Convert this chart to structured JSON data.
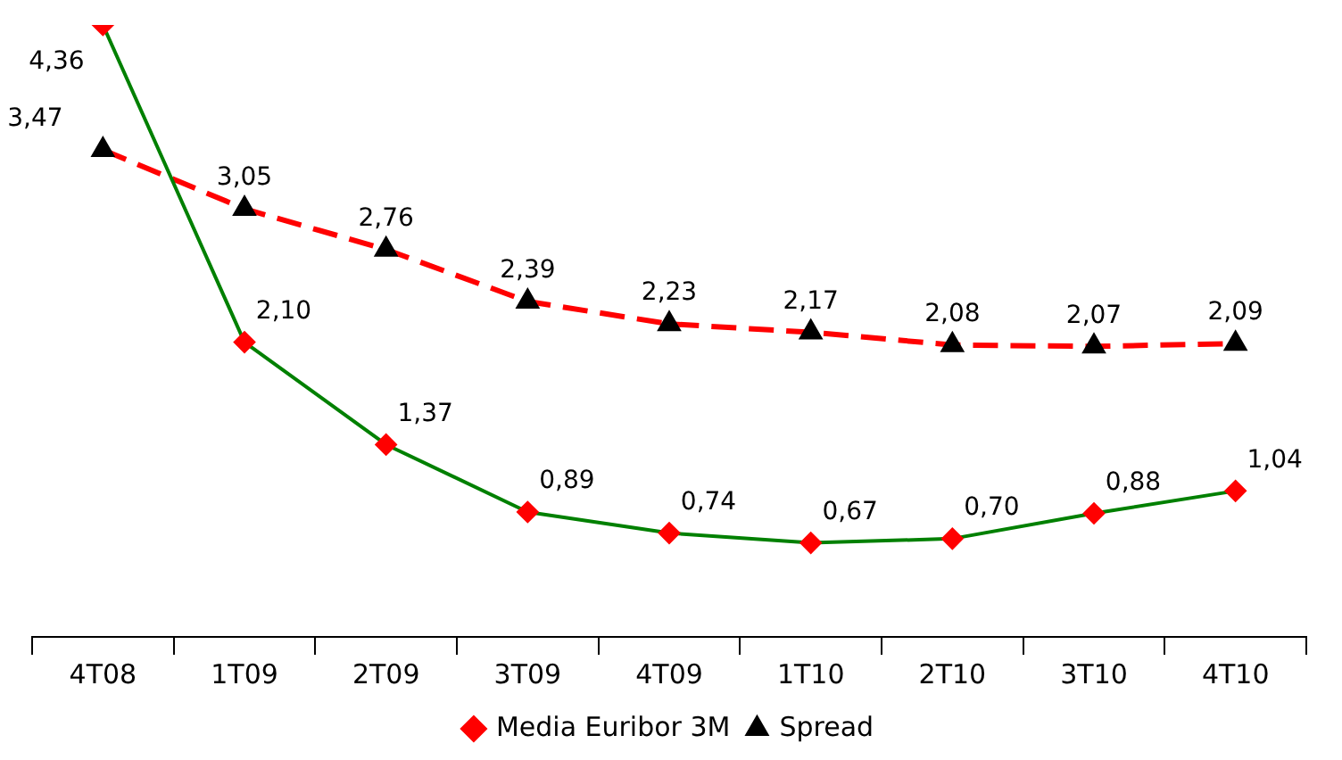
{
  "chart_data": {
    "type": "line",
    "categories": [
      "4T08",
      "1T09",
      "2T09",
      "3T09",
      "4T09",
      "1T10",
      "2T10",
      "3T10",
      "4T10"
    ],
    "series": [
      {
        "name": "Media Euribor 3M",
        "color": "#008000",
        "colors": [
          "#ff0000",
          "#ff0000",
          "#ff0000",
          "#ff0000",
          "#ff0000",
          "#ff0000",
          "#ff0000",
          "#ff0000",
          "#ff0000"
        ],
        "marker": "diamond",
        "line_style": "solid",
        "values": [
          4.36,
          2.1,
          1.37,
          0.89,
          0.74,
          0.67,
          0.7,
          0.88,
          1.04
        ],
        "value_labels": [
          "4,36",
          "2,10",
          "1,37",
          "0,89",
          "0,74",
          "0,67",
          "0,70",
          "0,88",
          "1,04"
        ]
      },
      {
        "name": "Spread",
        "color": "#ff0000",
        "colors": [
          "#000000",
          "#000000",
          "#000000",
          "#000000",
          "#000000",
          "#000000",
          "#000000",
          "#000000",
          "#000000"
        ],
        "marker": "triangle",
        "line_style": "dashed",
        "values": [
          3.47,
          3.05,
          2.76,
          2.39,
          2.23,
          2.17,
          2.08,
          2.07,
          2.09
        ],
        "value_labels": [
          "3,47",
          "3,05",
          "2,76",
          "2,39",
          "2,23",
          "2,17",
          "2,08",
          "2,07",
          "2,09"
        ]
      }
    ],
    "legend": "bottom",
    "grid": false,
    "tick_labels": "x"
  }
}
